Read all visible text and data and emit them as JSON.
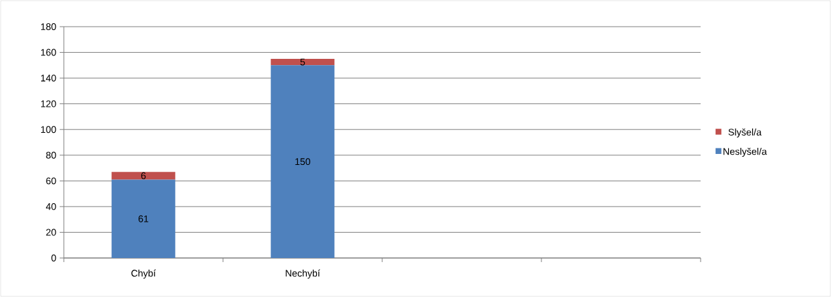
{
  "chart_data": {
    "type": "bar",
    "stacked": true,
    "categories": [
      "Chybí",
      "Nechybí",
      null,
      null
    ],
    "series": [
      {
        "name": "Neslyšel/a",
        "color": "#4f81bd",
        "values": [
          61,
          150,
          null,
          null
        ]
      },
      {
        "name": "Slyšel/a",
        "color": "#c0504d",
        "values": [
          6,
          5,
          null,
          null
        ]
      }
    ],
    "ylim": [
      0,
      180
    ],
    "yticks": [
      0,
      20,
      40,
      60,
      80,
      100,
      120,
      140,
      160,
      180
    ],
    "grid": "y",
    "legend": "right",
    "data_labels": true
  }
}
